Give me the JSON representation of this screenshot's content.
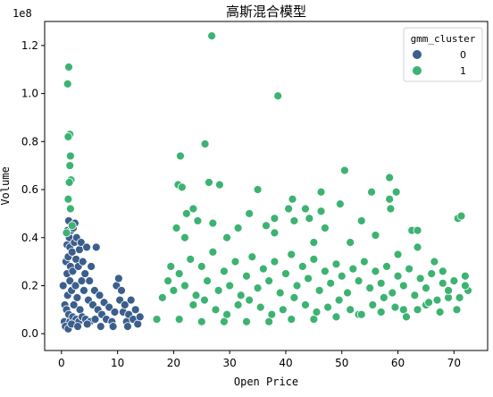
{
  "chart_data": {
    "type": "scatter",
    "title": "高斯混合模型",
    "xlabel": "Open Price",
    "ylabel": "Volume",
    "y_scale_label": "1e8",
    "xlim": [
      -3,
      76
    ],
    "ylim": [
      -0.07,
      1.3
    ],
    "x_ticks": [
      0,
      10,
      20,
      30,
      40,
      50,
      60,
      70
    ],
    "x_tick_labels": [
      "0",
      "10",
      "20",
      "30",
      "40",
      "50",
      "60",
      "70"
    ],
    "y_ticks": [
      0.0,
      0.2,
      0.4,
      0.6,
      0.8,
      1.0,
      1.2
    ],
    "y_tick_labels": [
      "0.0",
      "0.2",
      "0.4",
      "0.6",
      "0.8",
      "1.0",
      "1.2"
    ],
    "grid": false,
    "legend": {
      "title": "gmm_cluster",
      "placement": "top-right",
      "entries": [
        "0",
        "1"
      ]
    },
    "series": [
      {
        "name": "0",
        "color": "#3b5f8c",
        "points": [
          [
            0.3,
            0.2
          ],
          [
            0.5,
            0.05
          ],
          [
            0.6,
            0.12
          ],
          [
            0.8,
            0.3
          ],
          [
            0.9,
            0.1
          ],
          [
            1.0,
            0.37
          ],
          [
            1.0,
            0.25
          ],
          [
            1.1,
            0.43
          ],
          [
            1.1,
            0.16
          ],
          [
            1.2,
            0.32
          ],
          [
            1.3,
            0.47
          ],
          [
            1.3,
            0.08
          ],
          [
            1.4,
            0.4
          ],
          [
            1.5,
            0.22
          ],
          [
            1.5,
            0.36
          ],
          [
            1.6,
            0.28
          ],
          [
            1.7,
            0.43
          ],
          [
            1.8,
            0.18
          ],
          [
            1.9,
            0.34
          ],
          [
            2.0,
            0.26
          ],
          [
            2.1,
            0.44
          ],
          [
            2.2,
            0.12
          ],
          [
            2.3,
            0.38
          ],
          [
            2.4,
            0.46
          ],
          [
            2.5,
            0.2
          ],
          [
            2.6,
            0.31
          ],
          [
            2.7,
            0.4
          ],
          [
            2.8,
            0.15
          ],
          [
            3.0,
            0.28
          ],
          [
            3.2,
            0.35
          ],
          [
            3.3,
            0.1
          ],
          [
            3.5,
            0.38
          ],
          [
            3.6,
            0.22
          ],
          [
            3.8,
            0.3
          ],
          [
            4.0,
            0.18
          ],
          [
            4.2,
            0.25
          ],
          [
            4.5,
            0.36
          ],
          [
            4.8,
            0.14
          ],
          [
            5.0,
            0.22
          ],
          [
            5.3,
            0.28
          ],
          [
            5.6,
            0.12
          ],
          [
            5.9,
            0.18
          ],
          [
            6.2,
            0.36
          ],
          [
            6.5,
            0.1
          ],
          [
            6.8,
            0.16
          ],
          [
            7.2,
            0.08
          ],
          [
            7.6,
            0.13
          ],
          [
            8.0,
            0.06
          ],
          [
            8.5,
            0.11
          ],
          [
            9.0,
            0.05
          ],
          [
            9.5,
            0.09
          ],
          [
            9.8,
            0.2
          ],
          [
            10.2,
            0.23
          ],
          [
            10.4,
            0.14
          ],
          [
            10.7,
            0.18
          ],
          [
            11.0,
            0.09
          ],
          [
            11.3,
            0.12
          ],
          [
            11.6,
            0.05
          ],
          [
            12.0,
            0.08
          ],
          [
            12.4,
            0.14
          ],
          [
            12.8,
            0.06
          ],
          [
            13.2,
            0.1
          ],
          [
            13.6,
            0.04
          ],
          [
            14.0,
            0.07
          ],
          [
            1.5,
            0.05
          ],
          [
            2.0,
            0.07
          ],
          [
            2.6,
            0.06
          ],
          [
            3.1,
            0.05
          ],
          [
            3.7,
            0.07
          ],
          [
            4.3,
            0.06
          ],
          [
            5.1,
            0.05
          ],
          [
            6.0,
            0.06
          ],
          [
            0.7,
            0.03
          ],
          [
            1.2,
            0.02
          ],
          [
            1.8,
            0.04
          ],
          [
            2.9,
            0.03
          ],
          [
            4.6,
            0.04
          ],
          [
            7.0,
            0.03
          ],
          [
            9.2,
            0.03
          ],
          [
            11.8,
            0.03
          ]
        ]
      },
      {
        "name": "1",
        "color": "#3cb371",
        "points": [
          [
            1.3,
            1.11
          ],
          [
            1.1,
            1.04
          ],
          [
            1.5,
            0.83
          ],
          [
            1.2,
            0.82
          ],
          [
            1.6,
            0.74
          ],
          [
            1.5,
            0.7
          ],
          [
            1.7,
            0.64
          ],
          [
            1.4,
            0.63
          ],
          [
            1.2,
            0.56
          ],
          [
            1.6,
            0.52
          ],
          [
            1.9,
            0.45
          ],
          [
            0.9,
            0.42
          ],
          [
            26.8,
            1.24
          ],
          [
            38.6,
            0.99
          ],
          [
            25.6,
            0.79
          ],
          [
            21.2,
            0.74
          ],
          [
            50.5,
            0.68
          ],
          [
            58.5,
            0.65
          ],
          [
            26.3,
            0.63
          ],
          [
            20.8,
            0.62
          ],
          [
            21.5,
            0.61
          ],
          [
            28.2,
            0.62
          ],
          [
            55.3,
            0.59
          ],
          [
            46.3,
            0.59
          ],
          [
            59.7,
            0.59
          ],
          [
            41.2,
            0.56
          ],
          [
            58.5,
            0.56
          ],
          [
            35.0,
            0.6
          ],
          [
            58.7,
            0.52
          ],
          [
            49.7,
            0.54
          ],
          [
            46.3,
            0.51
          ],
          [
            43.5,
            0.52
          ],
          [
            40.5,
            0.52
          ],
          [
            23.5,
            0.52
          ],
          [
            22.3,
            0.5
          ],
          [
            33.5,
            0.5
          ],
          [
            38.0,
            0.48
          ],
          [
            41.5,
            0.47
          ],
          [
            44.2,
            0.48
          ],
          [
            47.0,
            0.44
          ],
          [
            53.5,
            0.47
          ],
          [
            56.0,
            0.41
          ],
          [
            62.5,
            0.43
          ],
          [
            63.5,
            0.43
          ],
          [
            70.7,
            0.48
          ],
          [
            71.3,
            0.49
          ],
          [
            63.5,
            0.36
          ],
          [
            51.5,
            0.38
          ],
          [
            36.5,
            0.45
          ],
          [
            31.5,
            0.44
          ],
          [
            27.0,
            0.46
          ],
          [
            24.3,
            0.47
          ],
          [
            20.5,
            0.44
          ],
          [
            22.0,
            0.4
          ],
          [
            29.5,
            0.4
          ],
          [
            38.0,
            0.42
          ],
          [
            45.0,
            0.38
          ],
          [
            60.0,
            0.33
          ],
          [
            66.5,
            0.3
          ],
          [
            68.0,
            0.26
          ],
          [
            72.0,
            0.24
          ],
          [
            72.5,
            0.18
          ],
          [
            69.0,
            0.15
          ],
          [
            65.0,
            0.12
          ],
          [
            61.0,
            0.1
          ],
          [
            57.0,
            0.09
          ],
          [
            53.0,
            0.08
          ],
          [
            49.0,
            0.07
          ],
          [
            45.0,
            0.06
          ],
          [
            41.0,
            0.06
          ],
          [
            37.0,
            0.05
          ],
          [
            33.0,
            0.05
          ],
          [
            29.0,
            0.05
          ],
          [
            25.0,
            0.05
          ],
          [
            21.0,
            0.06
          ],
          [
            17.0,
            0.06
          ],
          [
            18.0,
            0.15
          ],
          [
            19.0,
            0.22
          ],
          [
            19.5,
            0.28
          ],
          [
            20.0,
            0.18
          ],
          [
            21.0,
            0.25
          ],
          [
            22.0,
            0.2
          ],
          [
            23.0,
            0.31
          ],
          [
            24.0,
            0.16
          ],
          [
            25.0,
            0.28
          ],
          [
            26.0,
            0.22
          ],
          [
            27.0,
            0.34
          ],
          [
            28.0,
            0.18
          ],
          [
            29.0,
            0.26
          ],
          [
            30.0,
            0.2
          ],
          [
            31.0,
            0.3
          ],
          [
            32.0,
            0.16
          ],
          [
            33.0,
            0.24
          ],
          [
            34.0,
            0.32
          ],
          [
            35.0,
            0.19
          ],
          [
            36.0,
            0.27
          ],
          [
            37.0,
            0.22
          ],
          [
            38.0,
            0.3
          ],
          [
            39.0,
            0.17
          ],
          [
            40.0,
            0.25
          ],
          [
            41.0,
            0.33
          ],
          [
            42.0,
            0.2
          ],
          [
            43.0,
            0.28
          ],
          [
            44.0,
            0.23
          ],
          [
            45.0,
            0.31
          ],
          [
            46.0,
            0.18
          ],
          [
            47.0,
            0.26
          ],
          [
            48.0,
            0.21
          ],
          [
            49.0,
            0.29
          ],
          [
            50.0,
            0.24
          ],
          [
            51.0,
            0.17
          ],
          [
            52.0,
            0.27
          ],
          [
            53.0,
            0.22
          ],
          [
            54.0,
            0.3
          ],
          [
            55.0,
            0.19
          ],
          [
            56.0,
            0.26
          ],
          [
            57.0,
            0.21
          ],
          [
            58.0,
            0.28
          ],
          [
            59.0,
            0.17
          ],
          [
            60.0,
            0.24
          ],
          [
            61.0,
            0.2
          ],
          [
            62.0,
            0.27
          ],
          [
            63.0,
            0.16
          ],
          [
            64.0,
            0.23
          ],
          [
            65.0,
            0.19
          ],
          [
            66.0,
            0.25
          ],
          [
            67.0,
            0.14
          ],
          [
            68.0,
            0.21
          ],
          [
            69.0,
            0.18
          ],
          [
            70.0,
            0.22
          ],
          [
            71.0,
            0.15
          ],
          [
            72.0,
            0.2
          ],
          [
            23.5,
            0.12
          ],
          [
            27.5,
            0.1
          ],
          [
            31.5,
            0.12
          ],
          [
            35.5,
            0.11
          ],
          [
            39.5,
            0.1
          ],
          [
            43.5,
            0.12
          ],
          [
            47.5,
            0.11
          ],
          [
            51.5,
            0.1
          ],
          [
            55.5,
            0.12
          ],
          [
            59.5,
            0.11
          ],
          [
            63.5,
            0.1
          ],
          [
            67.5,
            0.09
          ],
          [
            70.5,
            0.1
          ],
          [
            25.5,
            0.14
          ],
          [
            33.5,
            0.14
          ],
          [
            41.5,
            0.15
          ],
          [
            49.5,
            0.14
          ],
          [
            57.5,
            0.15
          ],
          [
            65.5,
            0.13
          ],
          [
            29.5,
            0.08
          ],
          [
            37.5,
            0.08
          ],
          [
            45.5,
            0.09
          ],
          [
            53.5,
            0.08
          ],
          [
            61.5,
            0.07
          ]
        ]
      }
    ]
  }
}
